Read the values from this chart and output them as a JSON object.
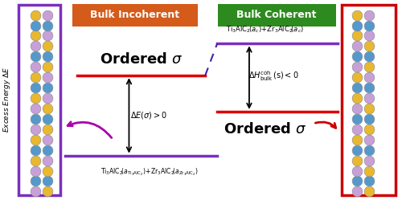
{
  "title_incoherent": "Bulk Incoherent",
  "title_coherent": "Bulk Coherent",
  "incoherent_box_color": "#d45b1a",
  "coherent_box_color": "#2d8a1e",
  "ylabel": "Excess Energy $\\Delta E$",
  "left_struct_edge": "#7b2fbe",
  "right_struct_edge": "#cc0000",
  "line_red": "#dd0000",
  "line_purple": "#7b2fbe",
  "dashed_color": "#4422aa",
  "arrow_black": "#000000",
  "arrow_purple": "#aa00aa",
  "arrow_red": "#cc0000",
  "atom_Ti": "#c8a0d8",
  "atom_Al": "#5599cc",
  "atom_Zr": "#e8b830",
  "atom_edge": "#888888",
  "bg": "#f5f5f5",
  "pattern_left": [
    "Ti",
    "Al",
    "Ti",
    "Zr",
    "Al",
    "Zr",
    "Ti",
    "Al",
    "Ti",
    "Zr",
    "Al",
    "Zr",
    "Ti",
    "Al",
    "Ti",
    "Zr",
    "Al",
    "Zr"
  ],
  "pattern_right": [
    "Zr",
    "Al",
    "Zr",
    "Ti",
    "Al",
    "Ti",
    "Zr",
    "Al",
    "Zr",
    "Ti",
    "Al",
    "Ti",
    "Zr",
    "Al",
    "Zr",
    "Ti",
    "Al",
    "Ti"
  ]
}
